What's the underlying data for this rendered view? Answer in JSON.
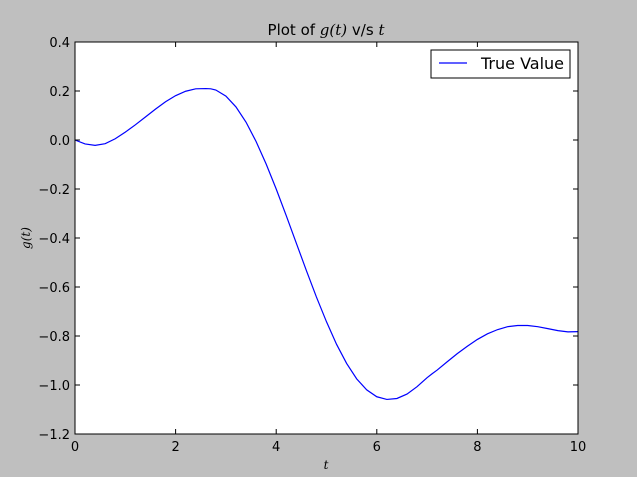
{
  "chart_data": {
    "type": "line",
    "title": {
      "prefix": "Plot of ",
      "func": "g(t)",
      "middle": " v/s ",
      "var": "t"
    },
    "xlabel": "t",
    "ylabel": "g(t)",
    "xlim": [
      0,
      10
    ],
    "ylim": [
      -1.2,
      0.4
    ],
    "xticks": [
      0,
      2,
      4,
      6,
      8,
      10
    ],
    "xtick_labels": [
      "0",
      "2",
      "4",
      "6",
      "8",
      "10"
    ],
    "yticks": [
      0.4,
      0.2,
      0.0,
      -0.2,
      -0.4,
      -0.6,
      -0.8,
      -1.0,
      -1.2
    ],
    "ytick_labels": [
      "0.4",
      "0.2",
      "0.0",
      "−0.2",
      "−0.4",
      "−0.6",
      "−0.8",
      "−1.0",
      "−1.2"
    ],
    "grid": false,
    "legend_position": "top-right",
    "series": [
      {
        "name": "True Value",
        "color": "#0000ff",
        "x": [
          0,
          0.2,
          0.4,
          0.6,
          0.8,
          1.0,
          1.2,
          1.4,
          1.6,
          1.8,
          2.0,
          2.2,
          2.4,
          2.6,
          2.7,
          2.8,
          3.0,
          3.2,
          3.4,
          3.6,
          3.8,
          4.0,
          4.2,
          4.4,
          4.6,
          4.8,
          5.0,
          5.2,
          5.4,
          5.6,
          5.8,
          6.0,
          6.2,
          6.4,
          6.6,
          6.8,
          7.0,
          7.1,
          7.2,
          7.4,
          7.6,
          7.8,
          8.0,
          8.2,
          8.4,
          8.6,
          8.8,
          9.0,
          9.2,
          9.4,
          9.6,
          9.8,
          10.0
        ],
        "y": [
          0.0,
          -0.016,
          -0.022,
          -0.015,
          0.005,
          0.032,
          0.062,
          0.094,
          0.126,
          0.156,
          0.181,
          0.199,
          0.209,
          0.21,
          0.209,
          0.204,
          0.179,
          0.135,
          0.073,
          -0.006,
          -0.098,
          -0.2,
          -0.309,
          -0.421,
          -0.533,
          -0.641,
          -0.742,
          -0.834,
          -0.912,
          -0.975,
          -1.02,
          -1.048,
          -1.059,
          -1.055,
          -1.037,
          -1.007,
          -0.97,
          -0.954,
          -0.939,
          -0.905,
          -0.872,
          -0.842,
          -0.814,
          -0.791,
          -0.774,
          -0.762,
          -0.757,
          -0.757,
          -0.762,
          -0.77,
          -0.778,
          -0.783,
          -0.782
        ]
      }
    ]
  }
}
